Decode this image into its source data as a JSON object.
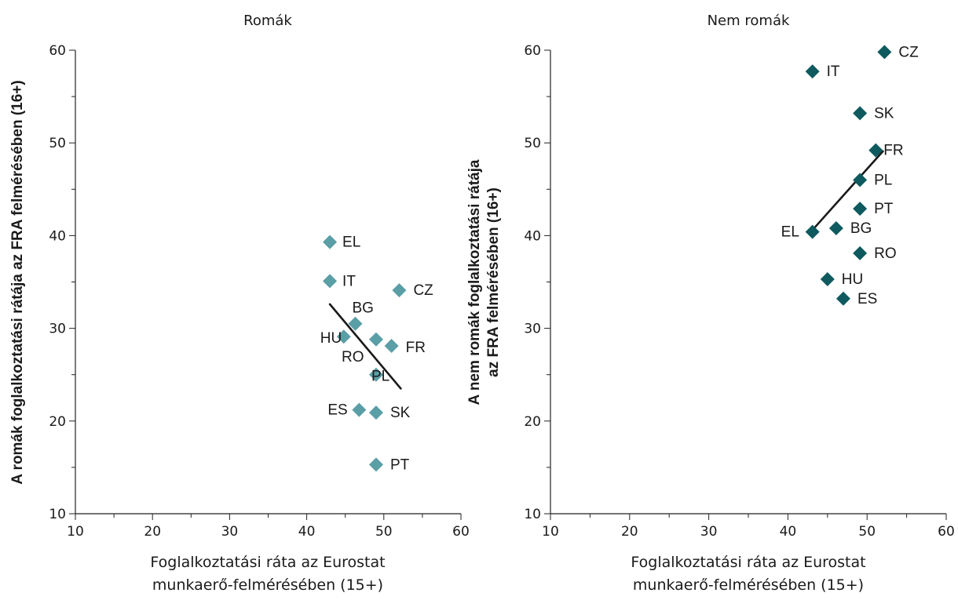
{
  "chart_data": [
    {
      "type": "scatter",
      "title": "Romák",
      "xlabel": [
        "Foglalkoztatási ráta az Eurostat",
        "munkaerő-felmérésében (15+)"
      ],
      "ylabel": "A romák foglalkoztatási rátája az FRA felmérésében (16+)",
      "xlim": [
        10,
        60
      ],
      "ylim": [
        10,
        60
      ],
      "xticks": [
        "10",
        "20",
        "30",
        "40",
        "50",
        "60"
      ],
      "yticks": [
        "10",
        "20",
        "30",
        "40",
        "50",
        "60"
      ],
      "marker_color": "#5a9ea6",
      "points": [
        {
          "label": "EL",
          "x": 43.0,
          "y": 39.3
        },
        {
          "label": "IT",
          "x": 43.0,
          "y": 35.1
        },
        {
          "label": "CZ",
          "x": 52.0,
          "y": 34.1
        },
        {
          "label": "BG",
          "x": 46.3,
          "y": 30.5
        },
        {
          "label": "HU",
          "x": 44.8,
          "y": 29.1
        },
        {
          "label": "RO",
          "x": 49.0,
          "y": 28.8
        },
        {
          "label": "FR",
          "x": 51.0,
          "y": 28.1
        },
        {
          "label": "PL",
          "x": 49.0,
          "y": 25.0
        },
        {
          "label": "ES",
          "x": 46.8,
          "y": 21.2
        },
        {
          "label": "SK",
          "x": 49.0,
          "y": 20.9
        },
        {
          "label": "PT",
          "x": 49.0,
          "y": 15.3
        }
      ],
      "trendline": {
        "x": [
          43.0,
          52.2
        ],
        "y": [
          32.6,
          23.5
        ]
      }
    },
    {
      "type": "scatter",
      "title": "Nem romák",
      "xlabel": [
        "Foglalkoztatási ráta az Eurostat",
        "munkaerő-felmérésében (15+)"
      ],
      "ylabel": [
        "A nem romák foglalkoztatási rátája",
        "az FRA felmérésében (16+)"
      ],
      "xlim": [
        10,
        60
      ],
      "ylim": [
        10,
        60
      ],
      "xticks": [
        "10",
        "20",
        "30",
        "40",
        "50",
        "60"
      ],
      "yticks": [
        "10",
        "20",
        "30",
        "40",
        "50",
        "60"
      ],
      "marker_color": "#0f5a5e",
      "points": [
        {
          "label": "CZ",
          "x": 52.2,
          "y": 59.8
        },
        {
          "label": "IT",
          "x": 43.1,
          "y": 57.7
        },
        {
          "label": "SK",
          "x": 49.1,
          "y": 53.2
        },
        {
          "label": "FR",
          "x": 51.1,
          "y": 49.2
        },
        {
          "label": "PL",
          "x": 49.1,
          "y": 46.0
        },
        {
          "label": "PT",
          "x": 49.1,
          "y": 42.9
        },
        {
          "label": "BG",
          "x": 46.1,
          "y": 40.8
        },
        {
          "label": "EL",
          "x": 43.1,
          "y": 40.4
        },
        {
          "label": "RO",
          "x": 49.1,
          "y": 38.1
        },
        {
          "label": "HU",
          "x": 45.0,
          "y": 35.3
        },
        {
          "label": "ES",
          "x": 47.0,
          "y": 33.2
        }
      ],
      "trendline": {
        "x": [
          43.1,
          52.0
        ],
        "y": [
          40.6,
          49.1
        ]
      }
    }
  ]
}
